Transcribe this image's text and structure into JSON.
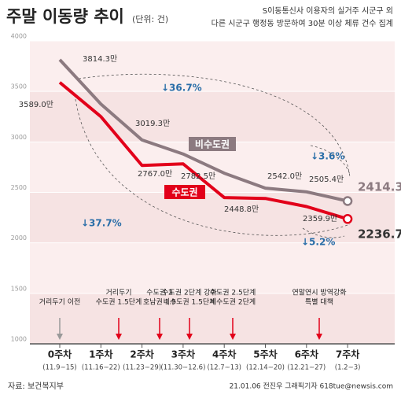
{
  "chart_data": {
    "type": "line",
    "title": "주말 이동량 추이",
    "subtitle": "(단위: 건)",
    "note": [
      "S이동통신사 이용자의 실거주 시군구 외",
      "다른 시군구 행정동 방문하여 30분 이상 체류 건수 집계"
    ],
    "categories": [
      "0주차",
      "1주차",
      "2주차",
      "3주차",
      "4주차",
      "5주차",
      "6주차",
      "7주차"
    ],
    "date_labels": [
      "(11.9~15)",
      "(11.16~22)",
      "(11.23~29)",
      "(11.30~12.6)",
      "(12.7~13)",
      "(12.14~20)",
      "(12.21~27)",
      "(1.2~3)"
    ],
    "ylim": [
      1000,
      4000
    ],
    "yticks": [
      1000,
      1500,
      2000,
      2500,
      3000,
      3500,
      4000
    ],
    "series": [
      {
        "name": "비수도권",
        "color": "#8c7a80",
        "values": [
          3814.3,
          3375,
          3019.3,
          2880,
          2690,
          2542.0,
          2505.4,
          2414.3
        ],
        "value_labels": [
          "3814.3만",
          null,
          "3019.3만",
          null,
          null,
          "2542.0만",
          "2505.4만",
          "2414.3만"
        ]
      },
      {
        "name": "수도권",
        "color": "#e2001a",
        "values": [
          3589.0,
          3250,
          2767.0,
          2782.5,
          2448.8,
          2440,
          2359.9,
          2236.7
        ],
        "value_labels": [
          "3589.0만",
          null,
          "2767.0만",
          "2782.5만",
          "2448.8만",
          null,
          "2359.9만",
          "2236.7만"
        ]
      }
    ],
    "changes": [
      "↓36.7%",
      "↓37.7%",
      "↓3.6%",
      "↓5.2%"
    ],
    "events": [
      [
        "거리두기 이전"
      ],
      [
        "거리두기",
        "수도권 1.5단계"
      ],
      [
        "수도권 2",
        "호남권 1.5"
      ],
      [
        "수도권 2단계 강화",
        "비수도권 1.5단계"
      ],
      [
        "수도권 2.5단계",
        "비수도권 2단계"
      ],
      [
        "연말연시 방역강화",
        "특별 대책"
      ]
    ],
    "source": "자료: 보건복지부",
    "credit": "21.01.06 전진우 그래픽기자 618tue@newsis.com"
  }
}
